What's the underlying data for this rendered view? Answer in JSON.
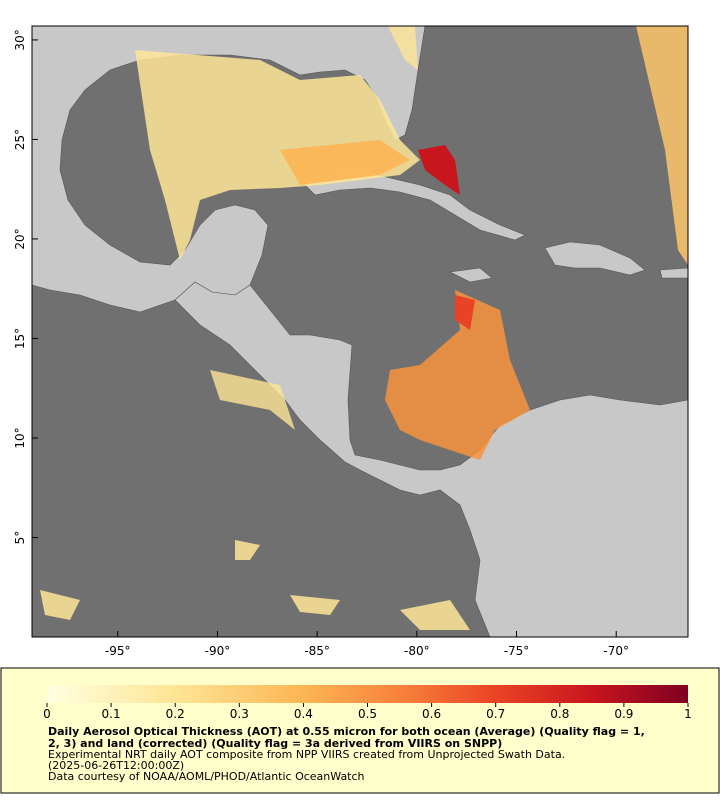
{
  "map": {
    "xlim": [
      -99.3,
      -66.4
    ],
    "ylim": [
      0,
      30.7
    ],
    "xticks": [
      {
        "value": -95,
        "label": "-95°"
      },
      {
        "value": -90,
        "label": "-90°"
      },
      {
        "value": -85,
        "label": "-85°"
      },
      {
        "value": -80,
        "label": "-80°"
      },
      {
        "value": -75,
        "label": "-75°"
      },
      {
        "value": -70,
        "label": "-70°"
      }
    ],
    "yticks": [
      {
        "value": 5,
        "label": "5°"
      },
      {
        "value": 10,
        "label": "10°"
      },
      {
        "value": 15,
        "label": "15°"
      },
      {
        "value": 20,
        "label": "20°"
      },
      {
        "value": 25,
        "label": "25°"
      },
      {
        "value": 30,
        "label": "30°"
      }
    ]
  },
  "colorbar": {
    "lim": [
      0,
      1
    ],
    "ticks": [
      0,
      0.1,
      0.2,
      0.3,
      0.4,
      0.5,
      0.6,
      0.7,
      0.8,
      0.9,
      1
    ]
  },
  "caption": {
    "title_lines": [
      "Daily Aerosol Optical Thickness (AOT) at 0.55 micron for both ocean (Average) (Quality flag = 1,",
      "2, 3) and land (corrected) (Quality flag = 3a derived from VIIRS on SNPP)"
    ],
    "lines": [
      "Experimental NRT daily AOT composite from NPP VIIRS created from Unprojected Swath Data.",
      "(2025-06-26T12:00:00Z)",
      "Data courtesy of NOAA/AOML/PHOD/Atlantic OceanWatch"
    ]
  }
}
